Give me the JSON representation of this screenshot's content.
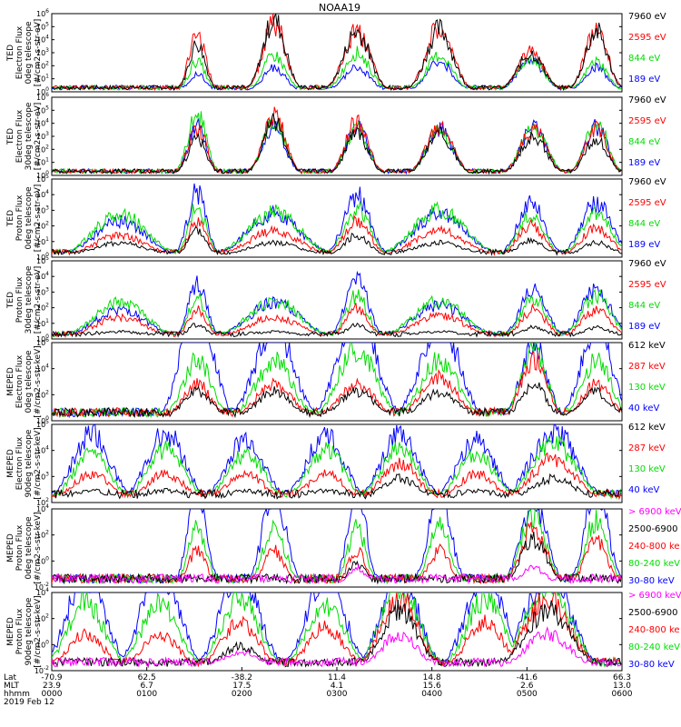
{
  "title": "NOAA19",
  "colors": {
    "black": "#000000",
    "red": "#ff0000",
    "green": "#00dd00",
    "blue": "#0000ff",
    "magenta": "#ff00ff"
  },
  "chart_data": {
    "type": "line",
    "panels": [
      {
        "ylabel": [
          "TED",
          "Electron Flux",
          "0deg telescope",
          "[#/cm2-s-str-eV]"
        ],
        "yticks": [
          "10^6",
          "10^5",
          "10^4",
          "10^3",
          "10^2",
          "10^1",
          "10^0"
        ],
        "legend": [
          {
            "label": "7960 eV",
            "color": "black"
          },
          {
            "label": "2595 eV",
            "color": "red"
          },
          {
            "label": "844 eV",
            "color": "green"
          },
          {
            "label": "189 eV",
            "color": "blue"
          }
        ],
        "peaks": [
          {
            "x": 0.255,
            "w": 0.022,
            "h": [
              4.0,
              5.0,
              2.5,
              1.5
            ]
          },
          {
            "x": 0.39,
            "w": 0.03,
            "h": [
              6.0,
              5.7,
              3.0,
              2.0
            ]
          },
          {
            "x": 0.535,
            "w": 0.035,
            "h": [
              5.0,
              5.0,
              3.2,
              2.0
            ]
          },
          {
            "x": 0.68,
            "w": 0.035,
            "h": [
              5.2,
              5.5,
              3.0,
              2.5
            ]
          },
          {
            "x": 0.84,
            "w": 0.035,
            "h": [
              3.2,
              3.3,
              2.8,
              2.6
            ]
          },
          {
            "x": 0.955,
            "w": 0.03,
            "h": [
              5.0,
              5.2,
              2.5,
              2.0
            ]
          }
        ]
      },
      {
        "ylabel": [
          "TED",
          "Electron Flux",
          "30deg telescope",
          "[#/cm2-s-str-eV]"
        ],
        "yticks": [
          "10^6",
          "10^5",
          "10^4",
          "10^3",
          "10^2",
          "10^1",
          "10^0"
        ],
        "legend": [
          {
            "label": "7960 eV",
            "color": "black"
          },
          {
            "label": "2595 eV",
            "color": "red"
          },
          {
            "label": "844 eV",
            "color": "green"
          },
          {
            "label": "189 eV",
            "color": "blue"
          }
        ],
        "peaks": [
          {
            "x": 0.255,
            "w": 0.025,
            "h": [
              3.0,
              4.0,
              5.0,
              4.0
            ]
          },
          {
            "x": 0.39,
            "w": 0.03,
            "h": [
              4.5,
              5.0,
              4.5,
              4.0
            ]
          },
          {
            "x": 0.535,
            "w": 0.03,
            "h": [
              3.5,
              4.5,
              4.0,
              4.0
            ]
          },
          {
            "x": 0.68,
            "w": 0.035,
            "h": [
              3.5,
              4.0,
              3.8,
              3.8
            ]
          },
          {
            "x": 0.845,
            "w": 0.035,
            "h": [
              3.2,
              3.8,
              4.0,
              4.0
            ]
          },
          {
            "x": 0.955,
            "w": 0.03,
            "h": [
              3.0,
              4.0,
              4.5,
              4.0
            ]
          }
        ]
      },
      {
        "ylabel": [
          "TED",
          "Proton Flux",
          "0deg telescope",
          "[#/cm2-s-str-eV]"
        ],
        "yticks": [
          "10^5",
          "10^4",
          "10^3",
          "10^2",
          "10^1",
          "10^0"
        ],
        "legend": [
          {
            "label": "7960 eV",
            "color": "black"
          },
          {
            "label": "2595 eV",
            "color": "red"
          },
          {
            "label": "844 eV",
            "color": "green"
          },
          {
            "label": "189 eV",
            "color": "blue"
          }
        ],
        "peaks": [
          {
            "x": 0.12,
            "w": 0.07,
            "h": [
              1.0,
              1.5,
              3.0,
              2.5
            ]
          },
          {
            "x": 0.255,
            "w": 0.025,
            "h": [
              1.8,
              2.5,
              3.5,
              4.5
            ]
          },
          {
            "x": 0.39,
            "w": 0.07,
            "h": [
              1.0,
              1.8,
              3.1,
              3.0
            ]
          },
          {
            "x": 0.535,
            "w": 0.035,
            "h": [
              1.5,
              2.5,
              3.3,
              4.3
            ]
          },
          {
            "x": 0.68,
            "w": 0.07,
            "h": [
              1.0,
              1.8,
              3.2,
              3.0
            ]
          },
          {
            "x": 0.84,
            "w": 0.035,
            "h": [
              1.2,
              2.2,
              3.0,
              3.8
            ]
          },
          {
            "x": 0.955,
            "w": 0.04,
            "h": [
              1.0,
              2.0,
              3.0,
              3.8
            ]
          }
        ]
      },
      {
        "ylabel": [
          "TED",
          "Proton Flux",
          "30deg telescope",
          "[#/cm2-s-str-eV]"
        ],
        "yticks": [
          "10^5",
          "10^4",
          "10^3",
          "10^2",
          "10^1",
          "10^0"
        ],
        "legend": [
          {
            "label": "7960 eV",
            "color": "black"
          },
          {
            "label": "2595 eV",
            "color": "red"
          },
          {
            "label": "844 eV",
            "color": "green"
          },
          {
            "label": "189 eV",
            "color": "blue"
          }
        ],
        "peaks": [
          {
            "x": 0.12,
            "w": 0.07,
            "h": [
              0.5,
              1.5,
              2.5,
              2.0
            ]
          },
          {
            "x": 0.255,
            "w": 0.025,
            "h": [
              1.0,
              2.0,
              2.8,
              3.8
            ]
          },
          {
            "x": 0.39,
            "w": 0.07,
            "h": [
              0.5,
              1.5,
              2.6,
              2.5
            ]
          },
          {
            "x": 0.535,
            "w": 0.03,
            "h": [
              1.0,
              2.2,
              3.0,
              4.3
            ]
          },
          {
            "x": 0.68,
            "w": 0.07,
            "h": [
              0.5,
              1.6,
              2.6,
              2.3
            ]
          },
          {
            "x": 0.845,
            "w": 0.035,
            "h": [
              0.8,
              2.0,
              2.8,
              3.5
            ]
          },
          {
            "x": 0.955,
            "w": 0.04,
            "h": [
              0.8,
              2.0,
              3.0,
              3.5
            ]
          }
        ]
      },
      {
        "ylabel": [
          "MEPED",
          "Electron Flux",
          "0deg telescope",
          "[#/cm2-s-str-keV]"
        ],
        "yticks": [
          "10^6",
          "10^4",
          "10^2",
          "10^0"
        ],
        "legend": [
          {
            "label": "612 keV",
            "color": "black"
          },
          {
            "label": "287 keV",
            "color": "red"
          },
          {
            "label": "130 keV",
            "color": "green"
          },
          {
            "label": "40 keV",
            "color": "blue"
          }
        ],
        "peaks": [
          {
            "x": 0.255,
            "w": 0.04,
            "h": [
              1.2,
              1.5,
              2.5,
              5.5
            ]
          },
          {
            "x": 0.39,
            "w": 0.05,
            "h": [
              1.2,
              1.5,
              2.5,
              4.0
            ]
          },
          {
            "x": 0.535,
            "w": 0.05,
            "h": [
              1.2,
              1.5,
              3.0,
              4.5
            ]
          },
          {
            "x": 0.68,
            "w": 0.05,
            "h": [
              1.2,
              1.8,
              2.5,
              4.2
            ]
          },
          {
            "x": 0.845,
            "w": 0.035,
            "h": [
              1.5,
              2.5,
              3.0,
              3.2
            ]
          },
          {
            "x": 0.955,
            "w": 0.04,
            "h": [
              1.2,
              1.5,
              2.5,
              4.0
            ]
          }
        ]
      },
      {
        "ylabel": [
          "MEPED",
          "Electron Flux",
          "90deg telescope",
          "[#/cm2-s-str-keV]"
        ],
        "yticks": [
          "10^5",
          "10^4",
          "10^3",
          "10^2"
        ],
        "legend": [
          {
            "label": "612 keV",
            "color": "black"
          },
          {
            "label": "287 keV",
            "color": "red"
          },
          {
            "label": "130 keV",
            "color": "green"
          },
          {
            "label": "40 keV",
            "color": "blue"
          }
        ],
        "peaks": [
          {
            "x": 0.07,
            "w": 0.05,
            "h": [
              0.5,
              1.2,
              2.0,
              2.8
            ]
          },
          {
            "x": 0.2,
            "w": 0.05,
            "h": [
              0.5,
              1.2,
              2.2,
              2.9
            ]
          },
          {
            "x": 0.34,
            "w": 0.05,
            "h": [
              0.5,
              1.2,
              2.0,
              2.6
            ]
          },
          {
            "x": 0.48,
            "w": 0.05,
            "h": [
              0.5,
              1.2,
              2.2,
              2.8
            ]
          },
          {
            "x": 0.61,
            "w": 0.05,
            "h": [
              1.0,
              1.6,
              2.2,
              2.8
            ]
          },
          {
            "x": 0.745,
            "w": 0.05,
            "h": [
              0.5,
              1.2,
              2.0,
              2.6
            ]
          },
          {
            "x": 0.88,
            "w": 0.06,
            "h": [
              1.0,
              1.8,
              2.5,
              3.0
            ]
          }
        ]
      },
      {
        "ylabel": [
          "MEPED",
          "Proton Flux",
          "0deg telescope",
          "[#/cm2-s-str-keV]"
        ],
        "yticks": [
          "10^4",
          "10^2",
          "10^0",
          "10^-2"
        ],
        "legend": [
          {
            "label": "> 6900 keV",
            "color": "magenta"
          },
          {
            "label": "2500-6900",
            "color": "black"
          },
          {
            "label": "240-800 ke",
            "color": "red"
          },
          {
            "label": "80-240 keV",
            "color": "green"
          },
          {
            "label": "30-80 keV",
            "color": "blue"
          }
        ],
        "peaks": [
          {
            "x": 0.255,
            "w": 0.025,
            "h": [
              0,
              0.2,
              1.5,
              2.5,
              4.0
            ]
          },
          {
            "x": 0.39,
            "w": 0.03,
            "h": [
              0,
              0.2,
              1.5,
              2.5,
              4.2
            ]
          },
          {
            "x": 0.535,
            "w": 0.025,
            "h": [
              0.8,
              1.0,
              1.5,
              2.5,
              4.2
            ]
          },
          {
            "x": 0.68,
            "w": 0.03,
            "h": [
              0,
              0.2,
              1.5,
              2.5,
              4.0
            ]
          },
          {
            "x": 0.845,
            "w": 0.035,
            "h": [
              0.8,
              2.0,
              2.5,
              3.0,
              3.5
            ]
          },
          {
            "x": 0.955,
            "w": 0.03,
            "h": [
              0,
              0.3,
              2.0,
              2.8,
              4.3
            ]
          }
        ]
      },
      {
        "ylabel": [
          "MEPED",
          "Proton Flux",
          "90deg telescope",
          "[#/cm2-s-str-keV]"
        ],
        "yticks": [
          "10^4",
          "10^2",
          "10^0",
          "10^-2"
        ],
        "legend": [
          {
            "label": "> 6900 keV",
            "color": "magenta"
          },
          {
            "label": "2500-6900",
            "color": "black"
          },
          {
            "label": "240-800 ke",
            "color": "red"
          },
          {
            "label": "80-240 keV",
            "color": "green"
          },
          {
            "label": "30-80 keV",
            "color": "blue"
          }
        ],
        "peaks": [
          {
            "x": 0.06,
            "w": 0.05,
            "h": [
              0,
              0.2,
              1.5,
              2.8,
              4.0
            ]
          },
          {
            "x": 0.19,
            "w": 0.05,
            "h": [
              0,
              0.2,
              1.5,
              2.8,
              4.3
            ]
          },
          {
            "x": 0.33,
            "w": 0.05,
            "h": [
              0.8,
              1.0,
              2.0,
              3.0,
              4.2
            ]
          },
          {
            "x": 0.48,
            "w": 0.05,
            "h": [
              0,
              0.2,
              1.8,
              2.8,
              4.0
            ]
          },
          {
            "x": 0.61,
            "w": 0.05,
            "h": [
              1.5,
              2.5,
              3.0,
              3.5,
              4.0
            ]
          },
          {
            "x": 0.76,
            "w": 0.05,
            "h": [
              0,
              0.2,
              2.0,
              3.0,
              4.2
            ]
          },
          {
            "x": 0.87,
            "w": 0.06,
            "h": [
              1.5,
              2.5,
              3.0,
              3.5,
              4.0
            ]
          }
        ]
      }
    ],
    "x_axis": {
      "row_labels": [
        "Lat",
        "MLT",
        "hhmm"
      ],
      "ticks": [
        {
          "lat": "-70.9",
          "mlt": "23.9",
          "hhmm": "0000"
        },
        {
          "lat": "62.5",
          "mlt": "6.7",
          "hhmm": "0100"
        },
        {
          "lat": "-38.2",
          "mlt": "17.5",
          "hhmm": "0200"
        },
        {
          "lat": "11.4",
          "mlt": "4.1",
          "hhmm": "0300"
        },
        {
          "lat": "14.8",
          "mlt": "15.6",
          "hhmm": "0400"
        },
        {
          "lat": "-41.6",
          "mlt": "2.6",
          "hhmm": "0500"
        },
        {
          "lat": "66.3",
          "mlt": "13.0",
          "hhmm": "0600"
        }
      ],
      "date": "2019 Feb 12"
    }
  }
}
